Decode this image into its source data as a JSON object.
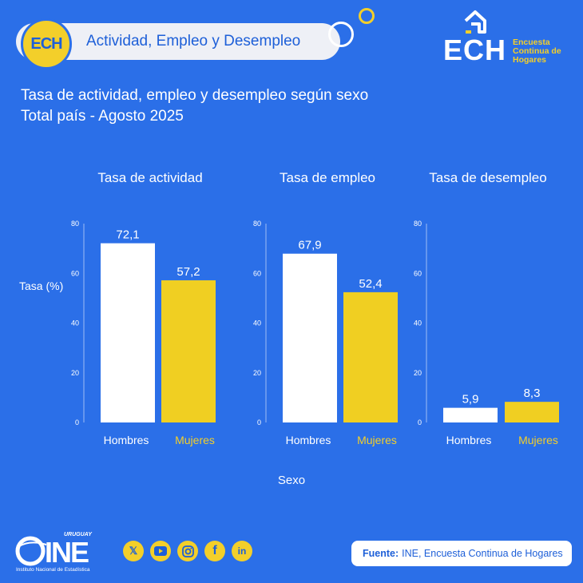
{
  "header": {
    "badge": "ECH",
    "title": "Actividad, Empleo y Desempleo",
    "logo_text": "ECH",
    "logo_sub": "Encuesta Continua de Hogares"
  },
  "heading": {
    "line1": "Tasa de actividad, empleo y desempleo según sexo",
    "line2": "Total país - Agosto 2025"
  },
  "chart_data": [
    {
      "type": "bar",
      "title": "Tasa de actividad",
      "categories": [
        "Hombres",
        "Mujeres"
      ],
      "values": [
        72.1,
        57.2
      ],
      "value_labels": [
        "72,1",
        "57,2"
      ],
      "ylabel": "Tasa (%)",
      "xlabel": "Sexo",
      "ylim": [
        0,
        80
      ],
      "yticks": [
        0,
        20,
        40,
        60,
        80
      ],
      "colors": [
        "#ffffff",
        "#f0cf22"
      ]
    },
    {
      "type": "bar",
      "title": "Tasa de empleo",
      "categories": [
        "Hombres",
        "Mujeres"
      ],
      "values": [
        67.9,
        52.4
      ],
      "value_labels": [
        "67,9",
        "52,4"
      ],
      "ylim": [
        0,
        80
      ],
      "yticks": [
        0,
        20,
        40,
        60,
        80
      ],
      "colors": [
        "#ffffff",
        "#f0cf22"
      ]
    },
    {
      "type": "bar",
      "title": "Tasa de desempleo",
      "categories": [
        "Hombres",
        "Mujeres"
      ],
      "values": [
        5.9,
        8.3
      ],
      "value_labels": [
        "5,9",
        "8,3"
      ],
      "ylim": [
        0,
        80
      ],
      "yticks": [
        0,
        20,
        40,
        60,
        80
      ],
      "colors": [
        "#ffffff",
        "#f0cf22"
      ]
    }
  ],
  "axis": {
    "ylabel": "Tasa (%)",
    "xlabel": "Sexo"
  },
  "footer": {
    "ine_top": "URUGUAY",
    "ine_text": "INE",
    "ine_sub": "Instituto Nacional de Estadística",
    "source_label": "Fuente:",
    "source_text": "INE, Encuesta Continua de Hogares",
    "social": [
      "x-icon",
      "youtube-icon",
      "instagram-icon",
      "facebook-icon",
      "linkedin-icon"
    ]
  },
  "colors": {
    "background": "#2b6fe8",
    "accent": "#f3cf2a",
    "brand_blue": "#1d5fd8"
  }
}
